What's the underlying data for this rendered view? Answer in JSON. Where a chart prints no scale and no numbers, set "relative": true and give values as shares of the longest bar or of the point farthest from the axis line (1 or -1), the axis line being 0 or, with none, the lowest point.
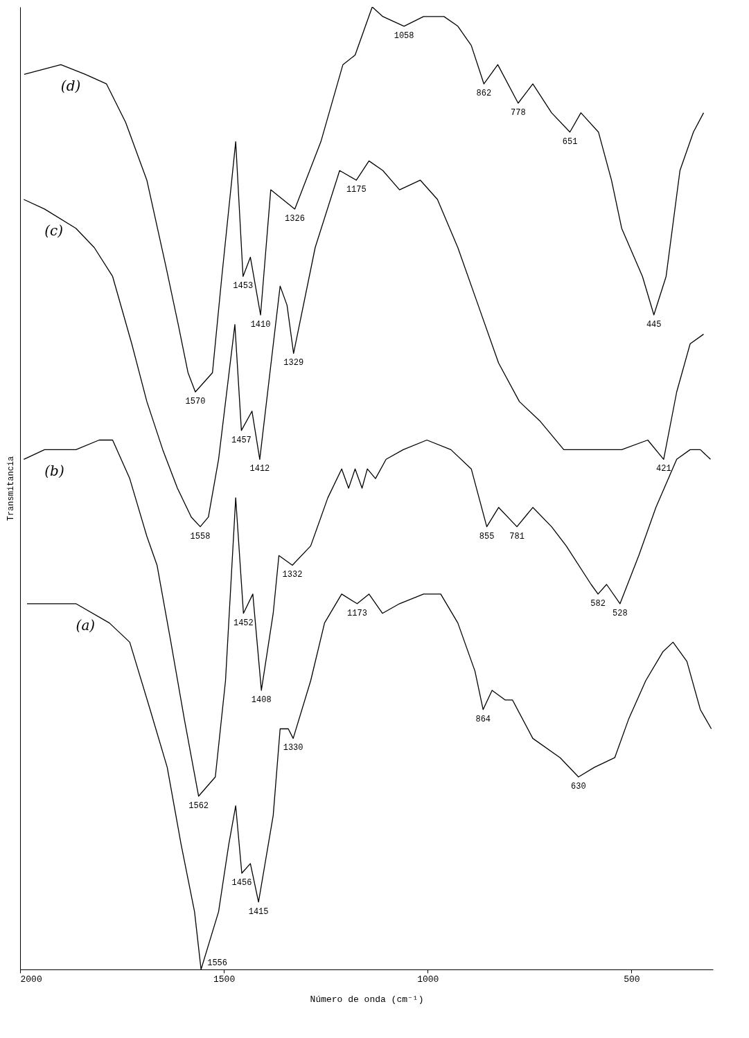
{
  "chart_data": {
    "type": "line",
    "relative": true,
    "xlabel": "Número de onda (cm⁻¹)",
    "ylabel": "Transmitancia",
    "xlim": [
      2000,
      300
    ],
    "xticks": [
      2000,
      1500,
      1000,
      500
    ],
    "grid": false,
    "legend": false,
    "marker": "none",
    "line_style": "solid",
    "series": [
      {
        "name": "(d)",
        "color": "#000000",
        "x": [
          1990,
          1900,
          1840,
          1788,
          1741,
          1689,
          1642,
          1612,
          1588,
          1570,
          1528,
          1505,
          1471,
          1453,
          1435,
          1410,
          1385,
          1326,
          1262,
          1208,
          1178,
          1136,
          1110,
          1058,
          1010,
          960,
          926,
          893,
          862,
          828,
          778,
          742,
          696,
          651,
          624,
          581,
          549,
          524,
          473,
          445,
          415,
          381,
          348,
          323
        ],
        "values": [
          0.93,
          0.94,
          0.93,
          0.92,
          0.88,
          0.82,
          0.73,
          0.67,
          0.62,
          0.6,
          0.62,
          0.72,
          0.86,
          0.72,
          0.74,
          0.68,
          0.81,
          0.79,
          0.86,
          0.94,
          0.95,
          1,
          0.99,
          0.98,
          0.99,
          0.99,
          0.98,
          0.96,
          0.92,
          0.94,
          0.9,
          0.92,
          0.89,
          0.87,
          0.89,
          0.87,
          0.82,
          0.77,
          0.72,
          0.68,
          0.72,
          0.83,
          0.87,
          0.89
        ]
      },
      {
        "name": "(c)",
        "color": "#000000",
        "x": [
          1991,
          1940,
          1863,
          1818,
          1773,
          1726,
          1689,
          1650,
          1614,
          1580,
          1558,
          1538,
          1513,
          1473,
          1457,
          1431,
          1412,
          1362,
          1345,
          1329,
          1276,
          1216,
          1175,
          1144,
          1110,
          1069,
          1018,
          976,
          926,
          876,
          826,
          775,
          725,
          666,
          608,
          524,
          460,
          421,
          389,
          356,
          323
        ],
        "values": [
          0.8,
          0.79,
          0.77,
          0.75,
          0.72,
          0.65,
          0.59,
          0.54,
          0.5,
          0.47,
          0.46,
          0.47,
          0.53,
          0.67,
          0.56,
          0.58,
          0.53,
          0.71,
          0.69,
          0.64,
          0.75,
          0.83,
          0.82,
          0.84,
          0.83,
          0.81,
          0.82,
          0.8,
          0.75,
          0.69,
          0.63,
          0.59,
          0.57,
          0.54,
          0.54,
          0.54,
          0.55,
          0.53,
          0.6,
          0.65,
          0.66
        ]
      },
      {
        "name": "(b)",
        "color": "#000000",
        "x": [
          1991,
          1940,
          1863,
          1806,
          1773,
          1731,
          1689,
          1664,
          1630,
          1597,
          1562,
          1521,
          1496,
          1471,
          1452,
          1429,
          1408,
          1379,
          1365,
          1332,
          1287,
          1245,
          1211,
          1194,
          1178,
          1161,
          1148,
          1128,
          1102,
          1060,
          1002,
          943,
          893,
          855,
          826,
          781,
          742,
          696,
          660,
          599,
          582,
          561,
          528,
          482,
          440,
          389,
          356,
          331,
          306
        ],
        "values": [
          0.53,
          0.54,
          0.54,
          0.55,
          0.55,
          0.51,
          0.45,
          0.42,
          0.34,
          0.26,
          0.18,
          0.2,
          0.3,
          0.49,
          0.37,
          0.39,
          0.29,
          0.37,
          0.43,
          0.42,
          0.44,
          0.49,
          0.52,
          0.5,
          0.52,
          0.5,
          0.52,
          0.51,
          0.53,
          0.54,
          0.55,
          0.54,
          0.52,
          0.46,
          0.48,
          0.46,
          0.48,
          0.46,
          0.44,
          0.4,
          0.39,
          0.4,
          0.38,
          0.43,
          0.48,
          0.53,
          0.54,
          0.54,
          0.53
        ]
      },
      {
        "name": "(a)",
        "color": "#000000",
        "x": [
          1983,
          1863,
          1781,
          1731,
          1681,
          1639,
          1605,
          1572,
          1556,
          1513,
          1488,
          1471,
          1456,
          1435,
          1415,
          1379,
          1362,
          1342,
          1330,
          1287,
          1253,
          1211,
          1173,
          1144,
          1111,
          1069,
          1010,
          968,
          926,
          884,
          864,
          842,
          810,
          792,
          742,
          675,
          630,
          591,
          541,
          507,
          465,
          423,
          398,
          364,
          331,
          304
        ],
        "values": [
          0.38,
          0.38,
          0.36,
          0.34,
          0.27,
          0.21,
          0.13,
          0.06,
          0,
          0.06,
          0.13,
          0.17,
          0.1,
          0.11,
          0.07,
          0.16,
          0.25,
          0.25,
          0.24,
          0.3,
          0.36,
          0.39,
          0.38,
          0.39,
          0.37,
          0.38,
          0.39,
          0.39,
          0.36,
          0.31,
          0.27,
          0.29,
          0.28,
          0.28,
          0.24,
          0.22,
          0.2,
          0.21,
          0.22,
          0.26,
          0.3,
          0.33,
          0.34,
          0.32,
          0.27,
          0.25
        ]
      }
    ],
    "annotations": [
      {
        "text": "1570",
        "x": 1570,
        "y": 0.6
      },
      {
        "text": "1453",
        "x": 1453,
        "y": 0.72
      },
      {
        "text": "1410",
        "x": 1410,
        "y": 0.68
      },
      {
        "text": "1326",
        "x": 1326,
        "y": 0.79
      },
      {
        "text": "1058",
        "x": 1058,
        "y": 0.98
      },
      {
        "text": "862",
        "x": 862,
        "y": 0.92
      },
      {
        "text": "778",
        "x": 778,
        "y": 0.9
      },
      {
        "text": "651",
        "x": 651,
        "y": 0.87
      },
      {
        "text": "445",
        "x": 445,
        "y": 0.68
      },
      {
        "text": "1558",
        "x": 1558,
        "y": 0.46
      },
      {
        "text": "1457",
        "x": 1457,
        "y": 0.56
      },
      {
        "text": "1412",
        "x": 1412,
        "y": 0.53
      },
      {
        "text": "1329",
        "x": 1329,
        "y": 0.64
      },
      {
        "text": "1175",
        "x": 1175,
        "y": 0.82
      },
      {
        "text": "421",
        "x": 421,
        "y": 0.53
      },
      {
        "text": "1562",
        "x": 1562,
        "y": 0.18
      },
      {
        "text": "1452",
        "x": 1452,
        "y": 0.37
      },
      {
        "text": "1408",
        "x": 1408,
        "y": 0.29
      },
      {
        "text": "1332",
        "x": 1332,
        "y": 0.42
      },
      {
        "text": "855",
        "x": 855,
        "y": 0.46
      },
      {
        "text": "781",
        "x": 781,
        "y": 0.46
      },
      {
        "text": "582",
        "x": 582,
        "y": 0.39
      },
      {
        "text": "528",
        "x": 528,
        "y": 0.38
      },
      {
        "text": "1556",
        "x": 1556,
        "y": 0
      },
      {
        "text": "1456",
        "x": 1456,
        "y": 0.1
      },
      {
        "text": "1415",
        "x": 1415,
        "y": 0.07
      },
      {
        "text": "1330",
        "x": 1330,
        "y": 0.24
      },
      {
        "text": "1173",
        "x": 1173,
        "y": 0.38
      },
      {
        "text": "864",
        "x": 864,
        "y": 0.27
      },
      {
        "text": "630",
        "x": 630,
        "y": 0.2
      }
    ]
  }
}
